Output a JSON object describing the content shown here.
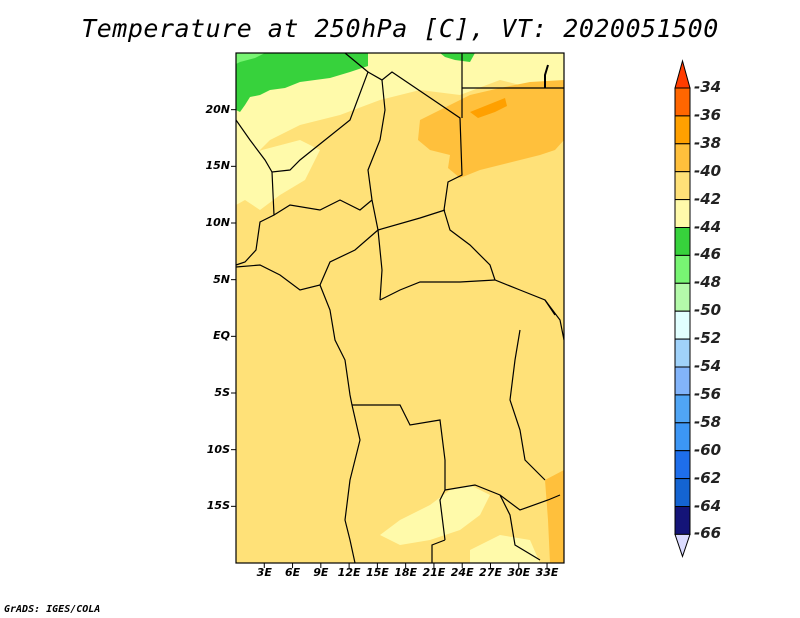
{
  "title": "Temperature at 250hPa [C], VT: 2020051500",
  "credit": "GrADS: IGES/COLA",
  "map": {
    "lat_labels": [
      "20N",
      "15N",
      "10N",
      "5N",
      "EQ",
      "5S",
      "10S",
      "15S"
    ],
    "lat_values": [
      20,
      15,
      10,
      5,
      0,
      -5,
      -10,
      -15
    ],
    "lon_labels": [
      "3E",
      "6E",
      "9E",
      "12E",
      "15E",
      "18E",
      "21E",
      "24E",
      "27E",
      "30E",
      "33E"
    ],
    "lon_values": [
      3,
      6,
      9,
      12,
      15,
      18,
      21,
      24,
      27,
      30,
      33
    ],
    "lon_range": [
      0,
      34.8
    ],
    "lat_range": [
      -20,
      25
    ],
    "dominant_band": "-42 to -40"
  },
  "colorbar": {
    "labels": [
      "-34",
      "-36",
      "-38",
      "-40",
      "-42",
      "-44",
      "-46",
      "-48",
      "-50",
      "-52",
      "-54",
      "-56",
      "-58",
      "-60",
      "-62",
      "-64",
      "-66"
    ],
    "colors": [
      "#ff6600",
      "#ffa000",
      "#ffc03c",
      "#ffe178",
      "#fffaaa",
      "#37d23c",
      "#78f573",
      "#b4faaa",
      "#e1ffff",
      "#a0d2fa",
      "#82b4fa",
      "#50a5f5",
      "#3c96f5",
      "#1e6eeb",
      "#1464d2",
      "#141478"
    ],
    "top_color": "#ff3c00",
    "bottom_color": "#dcdcff"
  }
}
